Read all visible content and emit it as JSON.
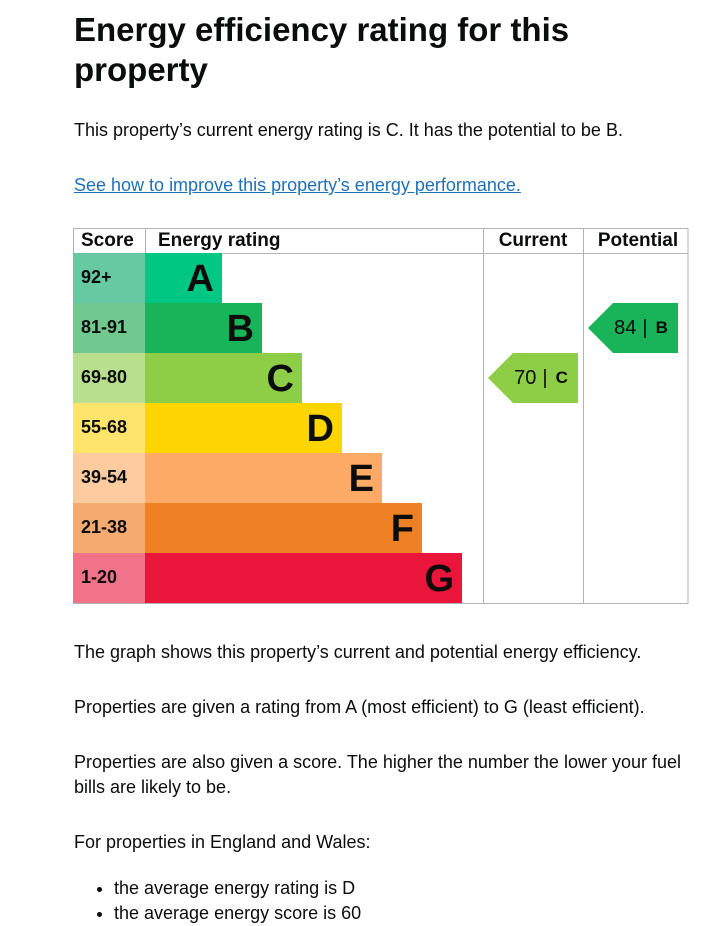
{
  "heading": "Energy efficiency rating for this property",
  "intro": "This property’s current energy rating is C. It has the potential to be B.",
  "link": "See how to improve this property’s energy performance.",
  "epc": {
    "headers": [
      "Score",
      "Energy rating",
      "Current",
      "Potential"
    ],
    "rows": [
      {
        "score": "92+",
        "band": "A",
        "color": "#00c781",
        "score_color": "#67c9a2"
      },
      {
        "score": "81-91",
        "band": "B",
        "color": "#19b459",
        "score_color": "#72c98f"
      },
      {
        "score": "69-80",
        "band": "C",
        "color": "#8dce46",
        "score_color": "#b8df8d"
      },
      {
        "score": "55-68",
        "band": "D",
        "color": "#ffd500",
        "score_color": "#ffe46c"
      },
      {
        "score": "39-54",
        "band": "E",
        "color": "#fcaa65",
        "score_color": "#fdcba0"
      },
      {
        "score": "21-38",
        "band": "F",
        "color": "#ef8023",
        "score_color": "#f5ab70"
      },
      {
        "score": "1-20",
        "band": "G",
        "color": "#e9153b",
        "score_color": "#f07389"
      }
    ],
    "current": {
      "score": 70,
      "separator": "|",
      "band": "C",
      "row": 2
    },
    "potential": {
      "score": 84,
      "separator": "|",
      "band": "B",
      "row": 1
    }
  },
  "paragraphs": [
    "The graph shows this property’s current and potential energy efficiency.",
    "Properties are given a rating from A (most efficient) to G (least efficient).",
    "Properties are also given a score. The higher the number the lower your fuel bills are likely to be.",
    "For properties in England and Wales:"
  ],
  "list": [
    "the average energy rating is D",
    "the average energy score is 60"
  ]
}
